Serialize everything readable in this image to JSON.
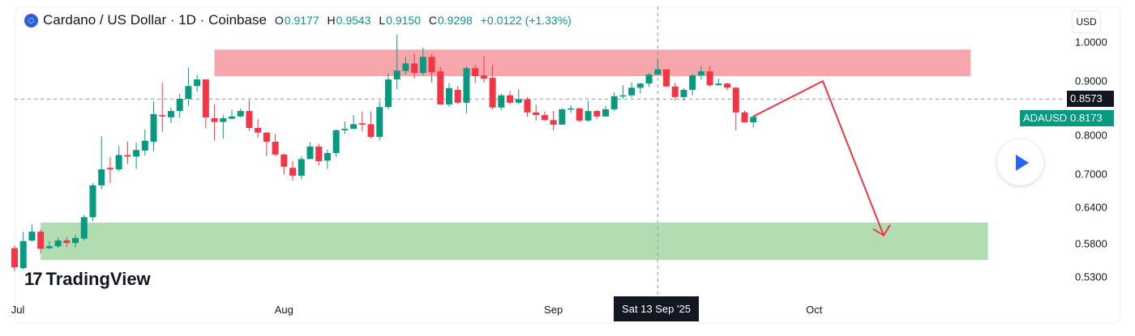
{
  "header": {
    "title": "Cardano / US Dollar · 1D · Coinbase",
    "o_label": "O",
    "o": "0.9177",
    "h_label": "H",
    "h": "0.9543",
    "l_label": "L",
    "l": "0.9150",
    "c_label": "C",
    "c": "0.9298",
    "change": "+0.0122 (+1.33%)"
  },
  "currency": "USD",
  "brand": "TradingView",
  "crosshair": {
    "date": "Sat 13 Sep '25",
    "day_index": 74,
    "price": "0.8573"
  },
  "last_price": {
    "symbol": "ADAUSD",
    "value": "0.8173"
  },
  "colors": {
    "up": "#089981",
    "down": "#f23645",
    "resistance": "#f7a7ab",
    "support": "#b2ddb2",
    "arrow": "#f23645"
  },
  "chart_data": {
    "type": "candlestick",
    "title": "Cardano / US Dollar · 1D · Coinbase",
    "y_scale": "log",
    "ylim": [
      0.52,
      1.03
    ],
    "y_ticks": [
      "1.0000",
      "0.9000",
      "0.8000",
      "0.7000",
      "0.6400",
      "0.5800",
      "0.5300"
    ],
    "x_labels": [
      {
        "label": "Jul",
        "day_index": 0
      },
      {
        "label": "Aug",
        "day_index": 31
      },
      {
        "label": "Sep",
        "day_index": 62
      },
      {
        "label": "Oct",
        "day_index": 92
      }
    ],
    "start_date": "2025-07-01",
    "ohlc": [
      [
        0.573,
        0.577,
        0.538,
        0.544
      ],
      [
        0.543,
        0.599,
        0.541,
        0.584
      ],
      [
        0.585,
        0.611,
        0.583,
        0.599
      ],
      [
        0.599,
        0.603,
        0.565,
        0.572
      ],
      [
        0.573,
        0.584,
        0.571,
        0.576
      ],
      [
        0.576,
        0.59,
        0.573,
        0.585
      ],
      [
        0.585,
        0.591,
        0.575,
        0.581
      ],
      [
        0.581,
        0.594,
        0.574,
        0.589
      ],
      [
        0.588,
        0.627,
        0.585,
        0.623
      ],
      [
        0.623,
        0.683,
        0.617,
        0.679
      ],
      [
        0.679,
        0.775,
        0.672,
        0.709
      ],
      [
        0.712,
        0.733,
        0.683,
        0.709
      ],
      [
        0.709,
        0.755,
        0.705,
        0.737
      ],
      [
        0.737,
        0.764,
        0.72,
        0.734
      ],
      [
        0.734,
        0.762,
        0.71,
        0.747
      ],
      [
        0.746,
        0.79,
        0.736,
        0.766
      ],
      [
        0.764,
        0.852,
        0.745,
        0.823
      ],
      [
        0.821,
        0.896,
        0.785,
        0.818
      ],
      [
        0.816,
        0.838,
        0.803,
        0.83
      ],
      [
        0.83,
        0.87,
        0.815,
        0.858
      ],
      [
        0.858,
        0.934,
        0.842,
        0.888
      ],
      [
        0.888,
        0.915,
        0.875,
        0.904
      ],
      [
        0.904,
        0.904,
        0.792,
        0.816
      ],
      [
        0.814,
        0.845,
        0.766,
        0.806
      ],
      [
        0.806,
        0.822,
        0.77,
        0.814
      ],
      [
        0.813,
        0.833,
        0.811,
        0.818
      ],
      [
        0.818,
        0.836,
        0.816,
        0.83
      ],
      [
        0.83,
        0.855,
        0.787,
        0.793
      ],
      [
        0.793,
        0.812,
        0.772,
        0.783
      ],
      [
        0.783,
        0.784,
        0.735,
        0.764
      ],
      [
        0.764,
        0.78,
        0.735,
        0.738
      ],
      [
        0.738,
        0.74,
        0.699,
        0.714
      ],
      [
        0.712,
        0.725,
        0.688,
        0.697
      ],
      [
        0.697,
        0.734,
        0.69,
        0.729
      ],
      [
        0.729,
        0.763,
        0.729,
        0.754
      ],
      [
        0.754,
        0.76,
        0.716,
        0.725
      ],
      [
        0.726,
        0.748,
        0.71,
        0.741
      ],
      [
        0.741,
        0.79,
        0.733,
        0.788
      ],
      [
        0.788,
        0.807,
        0.78,
        0.791
      ],
      [
        0.791,
        0.821,
        0.791,
        0.801
      ],
      [
        0.803,
        0.829,
        0.786,
        0.8
      ],
      [
        0.801,
        0.829,
        0.77,
        0.774
      ],
      [
        0.774,
        0.853,
        0.767,
        0.839
      ],
      [
        0.839,
        0.919,
        0.834,
        0.904
      ],
      [
        0.904,
        1.02,
        0.88,
        0.926
      ],
      [
        0.925,
        0.96,
        0.916,
        0.944
      ],
      [
        0.944,
        0.969,
        0.906,
        0.92
      ],
      [
        0.92,
        0.985,
        0.914,
        0.961
      ],
      [
        0.961,
        0.968,
        0.897,
        0.922
      ],
      [
        0.924,
        0.935,
        0.845,
        0.845
      ],
      [
        0.845,
        0.895,
        0.839,
        0.883
      ],
      [
        0.879,
        0.888,
        0.846,
        0.849
      ],
      [
        0.849,
        0.937,
        0.825,
        0.932
      ],
      [
        0.932,
        0.94,
        0.895,
        0.912
      ],
      [
        0.914,
        0.962,
        0.896,
        0.906
      ],
      [
        0.908,
        0.941,
        0.834,
        0.838
      ],
      [
        0.838,
        0.87,
        0.832,
        0.866
      ],
      [
        0.866,
        0.876,
        0.845,
        0.849
      ],
      [
        0.849,
        0.88,
        0.845,
        0.857
      ],
      [
        0.857,
        0.862,
        0.817,
        0.827
      ],
      [
        0.827,
        0.844,
        0.809,
        0.821
      ],
      [
        0.821,
        0.829,
        0.808,
        0.81
      ],
      [
        0.81,
        0.83,
        0.788,
        0.8
      ],
      [
        0.8,
        0.836,
        0.8,
        0.834
      ],
      [
        0.834,
        0.843,
        0.826,
        0.836
      ],
      [
        0.836,
        0.838,
        0.805,
        0.809
      ],
      [
        0.809,
        0.853,
        0.806,
        0.83
      ],
      [
        0.83,
        0.833,
        0.812,
        0.818
      ],
      [
        0.818,
        0.842,
        0.817,
        0.834
      ],
      [
        0.834,
        0.873,
        0.83,
        0.864
      ],
      [
        0.864,
        0.89,
        0.857,
        0.866
      ],
      [
        0.866,
        0.897,
        0.861,
        0.884
      ],
      [
        0.884,
        0.896,
        0.87,
        0.894
      ],
      [
        0.894,
        0.92,
        0.886,
        0.916
      ],
      [
        0.916,
        0.955,
        0.916,
        0.929
      ],
      [
        0.929,
        0.929,
        0.887,
        0.887
      ],
      [
        0.887,
        0.896,
        0.854,
        0.862
      ],
      [
        0.862,
        0.883,
        0.854,
        0.879
      ],
      [
        0.879,
        0.917,
        0.866,
        0.914
      ],
      [
        0.914,
        0.938,
        0.903,
        0.924
      ],
      [
        0.924,
        0.938,
        0.887,
        0.89
      ],
      [
        0.89,
        0.906,
        0.889,
        0.894
      ],
      [
        0.894,
        0.896,
        0.878,
        0.884
      ],
      [
        0.884,
        0.886,
        0.788,
        0.827
      ],
      [
        0.827,
        0.831,
        0.805,
        0.805
      ],
      [
        0.805,
        0.82,
        0.794,
        0.817
      ]
    ],
    "zones": [
      {
        "name": "resistance",
        "from_day": 23,
        "to_day": 110,
        "low": 0.912,
        "high": 0.98
      },
      {
        "name": "support",
        "from_day": 3,
        "to_day": 112,
        "low": 0.555,
        "high": 0.614
      }
    ],
    "projection": [
      {
        "day": 85,
        "price": 0.818
      },
      {
        "day": 93,
        "price": 0.9
      },
      {
        "day": 100,
        "price": 0.593
      }
    ]
  }
}
